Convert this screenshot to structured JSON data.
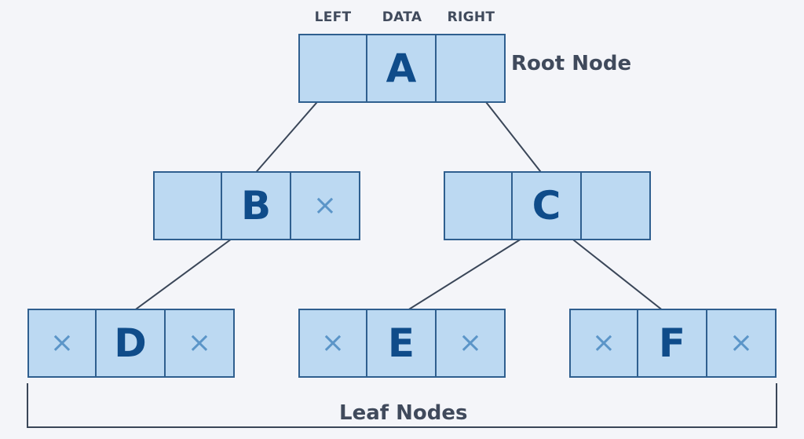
{
  "headers": {
    "left": "LEFT",
    "data": "DATA",
    "right": "RIGHT"
  },
  "root_label": "Root Node",
  "leaf_label": "Leaf Nodes",
  "null_symbol": "×",
  "colors": {
    "cell_fill": "#bcd9f2",
    "border": "#2f5f8f",
    "data_text": "#0f4c8a",
    "null_icon": "#5b95c8",
    "label_text": "#404a5c",
    "background": "#f4f5f9"
  },
  "nodes": [
    {
      "id": "A",
      "data": "A",
      "left_null": false,
      "right_null": false
    },
    {
      "id": "B",
      "data": "B",
      "left_null": false,
      "right_null": true
    },
    {
      "id": "C",
      "data": "C",
      "left_null": false,
      "right_null": false
    },
    {
      "id": "D",
      "data": "D",
      "left_null": true,
      "right_null": true
    },
    {
      "id": "E",
      "data": "E",
      "left_null": true,
      "right_null": true
    },
    {
      "id": "F",
      "data": "F",
      "left_null": true,
      "right_null": true
    }
  ],
  "edges": [
    {
      "from": "A",
      "to": "B",
      "side": "left"
    },
    {
      "from": "A",
      "to": "C",
      "side": "right"
    },
    {
      "from": "B",
      "to": "D",
      "side": "left"
    },
    {
      "from": "C",
      "to": "E",
      "side": "left"
    },
    {
      "from": "C",
      "to": "F",
      "side": "right"
    }
  ]
}
